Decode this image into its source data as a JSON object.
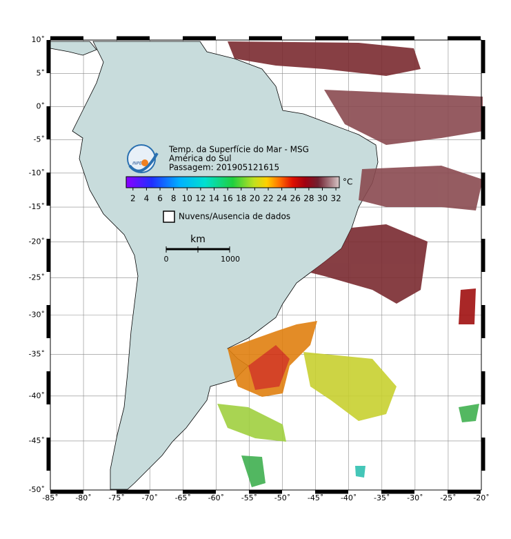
{
  "map": {
    "lon_ticks": [
      {
        "value": -85,
        "label": "-85˚"
      },
      {
        "value": -80,
        "label": "-80˚"
      },
      {
        "value": -75,
        "label": "-75˚"
      },
      {
        "value": -70,
        "label": "-70˚"
      },
      {
        "value": -65,
        "label": "-65˚"
      },
      {
        "value": -60,
        "label": "-60˚"
      },
      {
        "value": -55,
        "label": "-55˚"
      },
      {
        "value": -50,
        "label": "-50˚"
      },
      {
        "value": -45,
        "label": "-45˚"
      },
      {
        "value": -40,
        "label": "-40˚"
      },
      {
        "value": -35,
        "label": "-35˚"
      },
      {
        "value": -30,
        "label": "-30˚"
      },
      {
        "value": -25,
        "label": "-25˚"
      },
      {
        "value": -20,
        "label": "-20˚"
      }
    ],
    "lat_ticks": [
      {
        "value": 10,
        "label": "10˚"
      },
      {
        "value": 5,
        "label": "5˚"
      },
      {
        "value": 0,
        "label": "0˚"
      },
      {
        "value": -5,
        "label": "-5˚"
      },
      {
        "value": -10,
        "label": "-10˚"
      },
      {
        "value": -15,
        "label": "-15˚"
      },
      {
        "value": -20,
        "label": "-20˚"
      },
      {
        "value": -25,
        "label": "-25˚"
      },
      {
        "value": -30,
        "label": "-30˚"
      },
      {
        "value": -35,
        "label": "-35˚"
      },
      {
        "value": -40,
        "label": "-40˚"
      },
      {
        "value": -45,
        "label": "-45˚"
      },
      {
        "value": -50,
        "label": "-50˚"
      }
    ]
  },
  "legend": {
    "logo": "INPE",
    "title_lines": [
      "Temp. da Superfície do Mar - MSG",
      "América do Sul",
      "Passagem: 201905121615"
    ],
    "colorbar": {
      "unit": "°C",
      "range": [
        1,
        32.5
      ],
      "ticks": [
        2,
        4,
        6,
        8,
        10,
        12,
        14,
        16,
        18,
        20,
        22,
        24,
        26,
        28,
        30,
        32
      ]
    },
    "no_data": "Nuvens/Ausencia de dados",
    "scale": {
      "unit": "km",
      "ticks": [
        "0",
        "1000"
      ]
    }
  }
}
